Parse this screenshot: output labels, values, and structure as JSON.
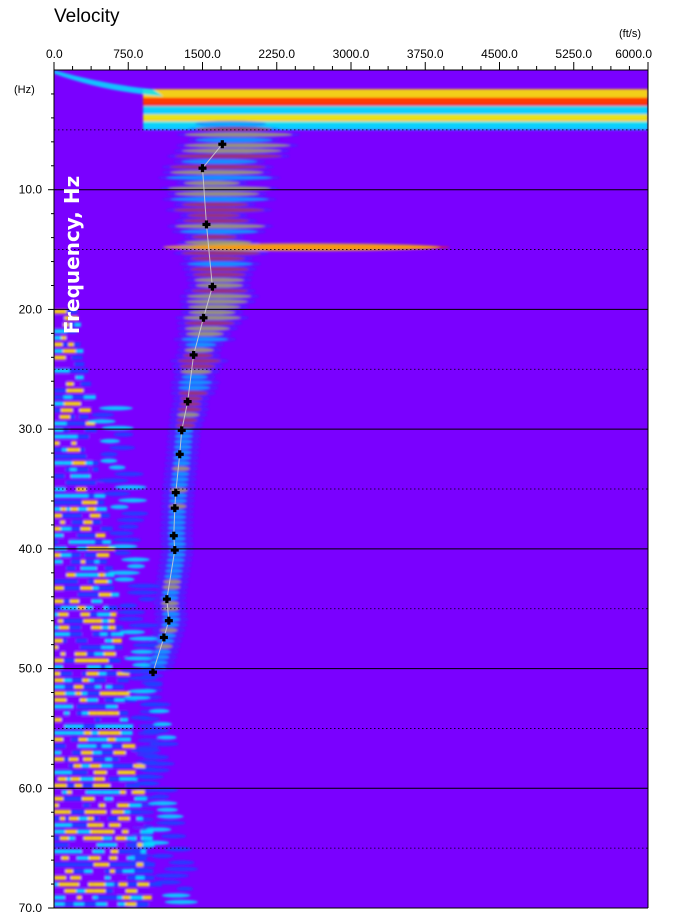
{
  "chart_data": {
    "type": "heatmap",
    "title": "Velocity",
    "x_unit": "(ft/s)",
    "y_unit": "(Hz)",
    "ylabel": "Frequency, Hz",
    "xlim": [
      0,
      6000
    ],
    "ylim": [
      0,
      70
    ],
    "x_ticks": [
      "0.0",
      "750.0",
      "1500.0",
      "2250.0",
      "3000.0",
      "3750.0",
      "4500.0",
      "5250.0",
      "6000.0"
    ],
    "y_ticks": [
      "10.0",
      "20.0",
      "30.0",
      "40.0",
      "50.0",
      "60.0",
      "70.0"
    ],
    "grid": "horizontal solid lines every 10 Hz, dotted lines at intermediate 5 Hz",
    "picked_dispersion_points": {
      "name": "",
      "x_velocity_fts": [
        1700,
        1500,
        1540,
        1600,
        1510,
        1410,
        1350,
        1290,
        1270,
        1230,
        1220,
        1210,
        1220,
        1140,
        1160,
        1110,
        1000
      ],
      "y_frequency_hz": [
        6.2,
        8.2,
        12.9,
        18.1,
        20.7,
        23.8,
        27.7,
        30.1,
        32.1,
        35.3,
        36.6,
        38.9,
        40.1,
        44.2,
        46.0,
        47.4,
        50.3
      ]
    },
    "colors": {
      "background": "#7a00ff",
      "low": "#1a45ff",
      "mid": "#00e4ff",
      "high": "#ffe600",
      "peak": "#ff2a00",
      "pick_marker": "#000000",
      "fit_line": "#d0d0d0"
    }
  }
}
